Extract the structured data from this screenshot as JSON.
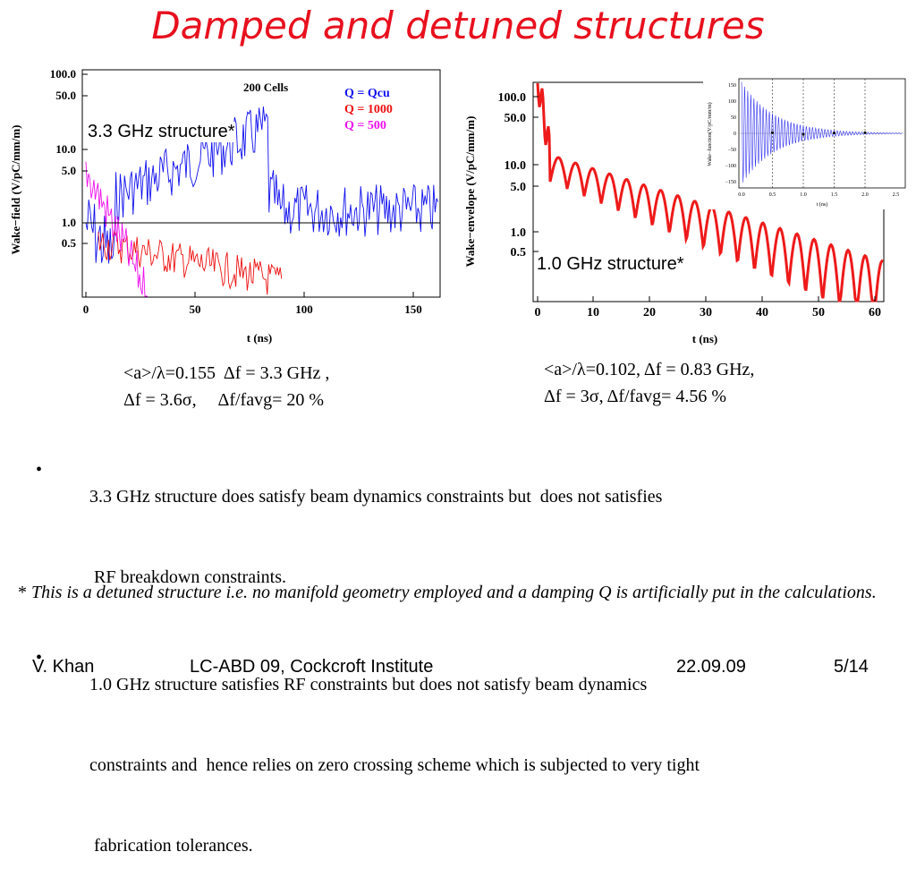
{
  "title": "Damped and detuned structures",
  "left_plot": {
    "annotation": "3.3 GHz structure*",
    "ylabel": "Wake−field (V/pC/mm/m)",
    "xlabel": "t (ns)",
    "cells_label": "200 Cells",
    "legend": [
      {
        "label": "Q = Qcu",
        "color": "#1010ee"
      },
      {
        "label": "Q = 1000",
        "color": "#ee1010"
      },
      {
        "label": "Q = 500",
        "color": "#ee10ee"
      }
    ],
    "xticks": [
      "0",
      "50",
      "100",
      "150"
    ],
    "yticks": [
      "100.0",
      "50.0",
      "10.0",
      "5.0",
      "1.0",
      "0.5"
    ]
  },
  "right_plot": {
    "annotation": "1.0 GHz structure*",
    "ylabel": "Wake−envelope (V/pC/mm/m)",
    "xlabel": "t (ns)",
    "xticks": [
      "0",
      "10",
      "20",
      "30",
      "40",
      "50",
      "60"
    ],
    "yticks": [
      "100.0",
      "50.0",
      "10.0",
      "5.0",
      "1.0",
      "0.5"
    ],
    "inset": {
      "ylabel": "Wake−function(V/pC/mm/m)",
      "xlabel": "t (ns)",
      "xticks": [
        "0.0",
        "0.5",
        "1.0",
        "1.5",
        "2.0",
        "2.5"
      ],
      "yticks": [
        "150",
        "100",
        "50",
        "0",
        "−50",
        "−100",
        "−150"
      ]
    }
  },
  "captions": {
    "left_line1": "<a>/λ=0.155  Δf = 3.3 GHz ,",
    "left_line2": "Δf = 3.6σ,     Δf/favg= 20 %",
    "right_line1": "<a>/λ=0.102, Δf = 0.83 GHz,",
    "right_line2": "Δf = 3σ, Δf/favg= 4.56 %"
  },
  "bullets": [
    {
      "lines": [
        "3.3 GHz structure does satisfy beam dynamics constraints but  does not satisfies",
        " RF breakdown constraints."
      ]
    },
    {
      "lines": [
        "1.0 GHz structure satisfies RF constraints but does not satisfy beam dynamics",
        "constraints and  hence relies on zero crossing scheme which is subjected to very tight",
        " fabrication tolerances."
      ]
    }
  ],
  "bullet_symbol": "•",
  "footnote": {
    "star": "*",
    "text": "This is a detuned structure i.e. no manifold geometry employed and a damping Q is artificially put in the calculations."
  },
  "footer": {
    "author": "V. Khan",
    "event": "LC-ABD 09, Cockcroft Institute",
    "date": "22.09.09",
    "page": "5/14"
  }
}
